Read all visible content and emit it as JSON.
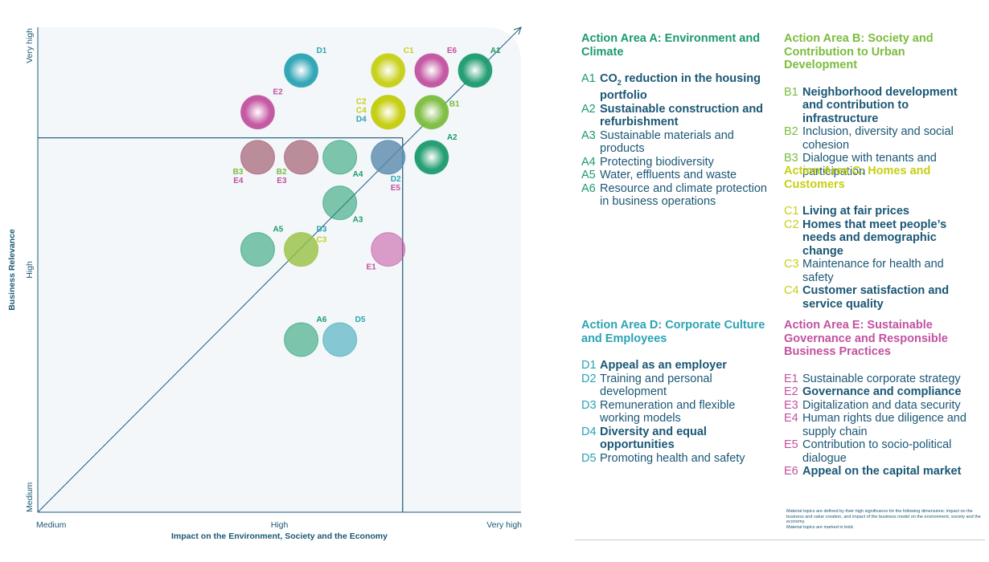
{
  "colors": {
    "A": "#1a9a6c",
    "B": "#7bbc3d",
    "C": "#c7cf13",
    "D": "#2aa3b3",
    "E": "#c2519f",
    "text": "#1a5775",
    "panel": "#f3f7fa"
  },
  "chart_data": {
    "type": "scatter",
    "title": "",
    "xlabel": "Impact on the Environment, Society and the Economy",
    "ylabel": "Business Relevance",
    "xlim": [
      0,
      100
    ],
    "ylim": [
      0,
      100
    ],
    "x_ticks": [
      {
        "value": 0,
        "label": "Medium"
      },
      {
        "value": 50,
        "label": "High"
      },
      {
        "value": 100,
        "label": "Very high"
      }
    ],
    "y_ticks": [
      {
        "value": 0,
        "label": "Medium"
      },
      {
        "value": 50,
        "label": "High"
      },
      {
        "value": 100,
        "label": "Very high"
      }
    ],
    "threshold": {
      "x": 75.5,
      "y": 77.2
    },
    "series": [
      {
        "name": "A",
        "points": [
          {
            "id": "A1",
            "x": 90.5,
            "y": 91.1
          },
          {
            "id": "A2",
            "x": 81.5,
            "y": 73.2
          },
          {
            "id": "A3",
            "x": 62.5,
            "y": 63.8
          },
          {
            "id": "A4",
            "x": 62.5,
            "y": 73.2
          },
          {
            "id": "A5",
            "x": 45.5,
            "y": 54.2
          },
          {
            "id": "A6",
            "x": 54.5,
            "y": 35.6
          }
        ]
      },
      {
        "name": "B",
        "points": [
          {
            "id": "B1",
            "x": 81.5,
            "y": 82.5
          },
          {
            "id": "B2",
            "x": 54.5,
            "y": 73.2
          },
          {
            "id": "B3",
            "x": 45.5,
            "y": 73.2
          }
        ]
      },
      {
        "name": "C",
        "points": [
          {
            "id": "C1",
            "x": 72.5,
            "y": 91.1
          },
          {
            "id": "C2",
            "x": 72.5,
            "y": 82.5
          },
          {
            "id": "C3",
            "x": 54.5,
            "y": 54.2
          },
          {
            "id": "C4",
            "x": 72.5,
            "y": 82.5
          }
        ]
      },
      {
        "name": "D",
        "points": [
          {
            "id": "D1",
            "x": 54.5,
            "y": 91.1
          },
          {
            "id": "D2",
            "x": 72.5,
            "y": 73.2
          },
          {
            "id": "D3",
            "x": 54.5,
            "y": 54.2
          },
          {
            "id": "D4",
            "x": 72.5,
            "y": 82.5
          },
          {
            "id": "D5",
            "x": 62.5,
            "y": 35.6
          }
        ]
      },
      {
        "name": "E",
        "points": [
          {
            "id": "E1",
            "x": 72.5,
            "y": 54.2
          },
          {
            "id": "E2",
            "x": 45.5,
            "y": 82.5
          },
          {
            "id": "E3",
            "x": 54.5,
            "y": 73.2
          },
          {
            "id": "E4",
            "x": 45.5,
            "y": 73.2
          },
          {
            "id": "E5",
            "x": 72.5,
            "y": 73.2
          },
          {
            "id": "E6",
            "x": 81.5,
            "y": 91.1
          }
        ]
      }
    ],
    "labels": [
      {
        "text": "A1",
        "series": "A",
        "anchor": "A1",
        "pos": "top-right"
      },
      {
        "text": "A2",
        "series": "A",
        "anchor": "A2",
        "pos": "top-right"
      },
      {
        "text": "A3",
        "series": "A",
        "anchor": "A3",
        "pos": "bottom-right"
      },
      {
        "text": "A4",
        "series": "A",
        "anchor": "A4",
        "pos": "bottom-right"
      },
      {
        "text": "A5",
        "series": "A",
        "anchor": "A5",
        "pos": "top-right"
      },
      {
        "text": "A6",
        "series": "A",
        "anchor": "A6",
        "pos": "top-right"
      },
      {
        "text": "B1",
        "series": "B",
        "anchor": "B1",
        "pos": "right"
      },
      {
        "text": "B2",
        "series": "B",
        "anchor": "B2",
        "pos": "bottom-left"
      },
      {
        "text": "B3",
        "series": "B",
        "anchor": "B3",
        "pos": "bottom-left"
      },
      {
        "text": "E4",
        "series": "E",
        "anchor": "E4",
        "pos": "bottom-left-2"
      },
      {
        "text": "E3",
        "series": "E",
        "anchor": "E3",
        "pos": "bottom-left-2"
      },
      {
        "text": "C1",
        "series": "C",
        "anchor": "C1",
        "pos": "top-right"
      },
      {
        "text": "C2",
        "series": "C",
        "anchor": "C2",
        "pos": "left-1"
      },
      {
        "text": "C4",
        "series": "C",
        "anchor": "C4",
        "pos": "left-2"
      },
      {
        "text": "D4",
        "series": "D",
        "anchor": "D4",
        "pos": "left-3"
      },
      {
        "text": "D1",
        "series": "D",
        "anchor": "D1",
        "pos": "top-right"
      },
      {
        "text": "E6",
        "series": "E",
        "anchor": "E6",
        "pos": "top-right"
      },
      {
        "text": "E2",
        "series": "E",
        "anchor": "E2",
        "pos": "top-right"
      },
      {
        "text": "D2",
        "series": "D",
        "anchor": "D2",
        "pos": "bottom-right"
      },
      {
        "text": "E5",
        "series": "E",
        "anchor": "E5",
        "pos": "bottom-right-2"
      },
      {
        "text": "D3",
        "series": "D",
        "anchor": "D3",
        "pos": "top-right"
      },
      {
        "text": "C3",
        "series": "C",
        "anchor": "C3",
        "pos": "top-right-2"
      },
      {
        "text": "E1",
        "series": "E",
        "anchor": "E1",
        "pos": "bottom-left"
      },
      {
        "text": "D5",
        "series": "D",
        "anchor": "D5",
        "pos": "top-right"
      }
    ]
  },
  "legend": {
    "areas": [
      {
        "key": "A",
        "title": "Action Area A: Environment and Climate",
        "items": [
          {
            "code": "A1",
            "pre": "CO",
            "sub": "2",
            "text": " reduction in the housing portfolio",
            "bold": true
          },
          {
            "code": "A2",
            "text": "Sustainable construction and refurbishment",
            "bold": true
          },
          {
            "code": "A3",
            "text": "Sustainable materials and products",
            "bold": false
          },
          {
            "code": "A4",
            "text": "Protecting biodiversity",
            "bold": false
          },
          {
            "code": "A5",
            "text": "Water, effluents and waste",
            "bold": false
          },
          {
            "code": "A6",
            "text": "Resource and climate protection in business operations",
            "bold": false
          }
        ]
      },
      {
        "key": "B",
        "title": "Action Area B: Society and Contribution to Urban Development",
        "items": [
          {
            "code": "B1",
            "text": "Neighborhood development and contribution to infrastructure",
            "bold": true
          },
          {
            "code": "B2",
            "text": "Inclusion, diversity and social cohesion",
            "bold": false
          },
          {
            "code": "B3",
            "text": "Dialogue with tenants and participation",
            "bold": false
          }
        ]
      },
      {
        "key": "C",
        "title": "Action Area C: Homes and Customers",
        "items": [
          {
            "code": "C1",
            "text": "Living at fair prices",
            "bold": true
          },
          {
            "code": "C2",
            "text": "Homes that meet people’s needs and demographic change",
            "bold": true
          },
          {
            "code": "C3",
            "text": "Maintenance for health and safety",
            "bold": false
          },
          {
            "code": "C4",
            "text": "Customer satisfaction and service quality",
            "bold": true
          }
        ]
      },
      {
        "key": "D",
        "title": "Action Area D: Corporate Culture and Employees",
        "items": [
          {
            "code": "D1",
            "text": "Appeal as an employer",
            "bold": true
          },
          {
            "code": "D2",
            "text": "Training and personal development",
            "bold": false
          },
          {
            "code": "D3",
            "text": "Remuneration and flexible working models",
            "bold": false
          },
          {
            "code": "D4",
            "text": "Diversity and equal opportunities",
            "bold": true
          },
          {
            "code": "D5",
            "text": "Promoting health and safety",
            "bold": false
          }
        ]
      },
      {
        "key": "E",
        "title": "Action Area E: Sustainable Governance and Responsible Business Practices",
        "items": [
          {
            "code": "E1",
            "text": "Sustainable corporate strategy",
            "bold": false
          },
          {
            "code": "E2",
            "text": "Governance and compliance",
            "bold": true
          },
          {
            "code": "E3",
            "text": "Digitalization and data security",
            "bold": false
          },
          {
            "code": "E4",
            "text": "Human rights due diligence and supply chain",
            "bold": false
          },
          {
            "code": "E5",
            "text": "Contribution to socio-political dialogue",
            "bold": false
          },
          {
            "code": "E6",
            "text": "Appeal on the capital market",
            "bold": true
          }
        ]
      }
    ]
  },
  "footnote": {
    "line1": "Material topics are defined by their high significance for the following dimensions: impact on the business and value creation, and impact of the business model on the environment, society and the economy.",
    "line2": "Material topics are marked in bold."
  }
}
